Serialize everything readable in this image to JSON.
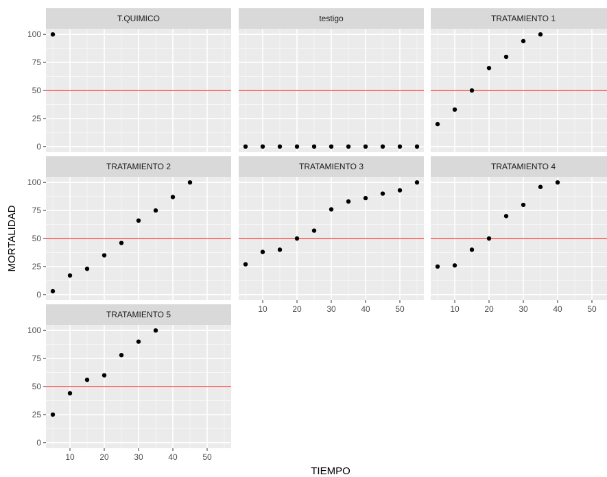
{
  "chart_data": {
    "type": "scatter",
    "facets": true,
    "xlabel": "TIEMPO",
    "ylabel": "MORTALIDAD",
    "xlim": [
      3,
      57
    ],
    "ylim": [
      -5,
      105
    ],
    "x_ticks": [
      10,
      20,
      30,
      40,
      50
    ],
    "y_ticks": [
      0,
      25,
      50,
      75,
      100
    ],
    "reference_line": {
      "y": 50,
      "color": "#ff4d4d"
    },
    "point_color": "#000000",
    "panel_background": "#ebebeb",
    "strip_background": "#d9d9d9",
    "grid": true,
    "panels": [
      {
        "label": "T.QUIMICO",
        "x": [
          5
        ],
        "y": [
          100
        ]
      },
      {
        "label": "testigo",
        "x": [
          5,
          10,
          15,
          20,
          25,
          30,
          35,
          40,
          45,
          50,
          55
        ],
        "y": [
          0,
          0,
          0,
          0,
          0,
          0,
          0,
          0,
          0,
          0,
          0
        ]
      },
      {
        "label": "TRATAMIENTO 1",
        "x": [
          5,
          10,
          15,
          20,
          25,
          30,
          35
        ],
        "y": [
          20,
          33,
          50,
          70,
          80,
          94,
          100
        ]
      },
      {
        "label": "TRATAMIENTO 2",
        "x": [
          5,
          10,
          15,
          20,
          25,
          30,
          35,
          40,
          45
        ],
        "y": [
          3,
          17,
          23,
          35,
          46,
          66,
          75,
          87,
          100
        ]
      },
      {
        "label": "TRATAMIENTO 3",
        "x": [
          5,
          10,
          15,
          20,
          25,
          30,
          35,
          40,
          45,
          50,
          55
        ],
        "y": [
          27,
          38,
          40,
          50,
          57,
          76,
          83,
          86,
          90,
          93,
          100
        ]
      },
      {
        "label": "TRATAMIENTO 4",
        "x": [
          5,
          10,
          15,
          20,
          25,
          30,
          35,
          40
        ],
        "y": [
          25,
          26,
          40,
          50,
          70,
          80,
          96,
          100
        ]
      },
      {
        "label": "TRATAMIENTO 5",
        "x": [
          5,
          10,
          15,
          20,
          25,
          30,
          35
        ],
        "y": [
          25,
          44,
          56,
          60,
          78,
          90,
          100
        ]
      }
    ]
  }
}
